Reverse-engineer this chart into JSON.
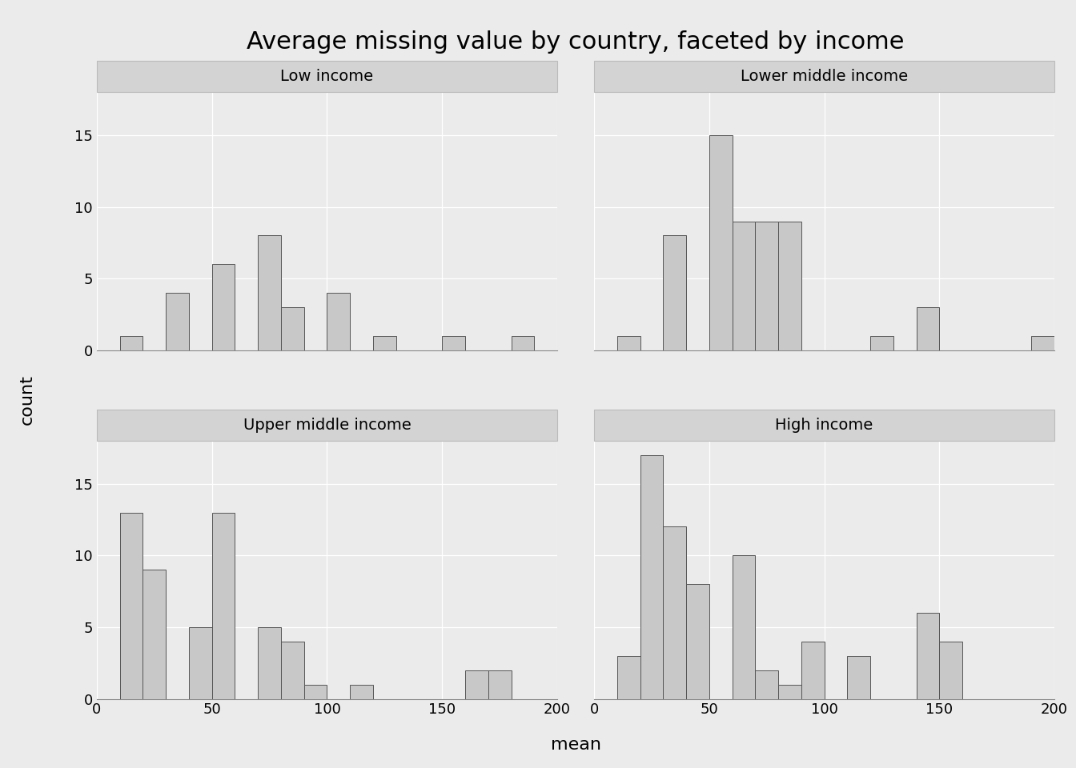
{
  "title": "Average missing value by country, faceted by income",
  "panels": [
    {
      "label": "Low income",
      "bin_edges": [
        10,
        20,
        30,
        40,
        50,
        60,
        70,
        80,
        90,
        100,
        110,
        120,
        130,
        140,
        150,
        160,
        170,
        180,
        190,
        200
      ],
      "counts": [
        1,
        0,
        4,
        0,
        6,
        0,
        8,
        3,
        0,
        4,
        0,
        1,
        0,
        0,
        1,
        0,
        0,
        1,
        0
      ]
    },
    {
      "label": "Lower middle income",
      "bin_edges": [
        10,
        20,
        30,
        40,
        50,
        60,
        70,
        80,
        90,
        100,
        110,
        120,
        130,
        140,
        150,
        160,
        170,
        180,
        190,
        200
      ],
      "counts": [
        1,
        0,
        8,
        0,
        15,
        9,
        9,
        9,
        0,
        0,
        0,
        1,
        0,
        3,
        0,
        0,
        0,
        0,
        1
      ]
    },
    {
      "label": "Upper middle income",
      "bin_edges": [
        10,
        20,
        30,
        40,
        50,
        60,
        70,
        80,
        90,
        100,
        110,
        120,
        130,
        140,
        150,
        160,
        170,
        180,
        190,
        200
      ],
      "counts": [
        13,
        9,
        0,
        5,
        13,
        0,
        5,
        4,
        1,
        0,
        1,
        0,
        0,
        0,
        0,
        2,
        2,
        0,
        0
      ]
    },
    {
      "label": "High income",
      "bin_edges": [
        10,
        20,
        30,
        40,
        50,
        60,
        70,
        80,
        90,
        100,
        110,
        120,
        130,
        140,
        150,
        160,
        170,
        180,
        190,
        200
      ],
      "counts": [
        3,
        17,
        12,
        8,
        0,
        10,
        2,
        1,
        4,
        0,
        3,
        0,
        0,
        6,
        4,
        0,
        0,
        0,
        0
      ]
    }
  ],
  "xlim": [
    0,
    200
  ],
  "xticks": [
    0,
    50,
    100,
    150,
    200
  ],
  "ylim": [
    0,
    18
  ],
  "yticks": [
    0,
    5,
    10,
    15
  ],
  "xlabel": "mean",
  "ylabel": "count",
  "bar_color": "#c8c8c8",
  "bar_edgecolor": "#555555",
  "outer_bg_color": "#ebebeb",
  "panel_bg_color": "#ebebeb",
  "strip_bg_color": "#d3d3d3",
  "grid_color": "#ffffff",
  "title_fontsize": 22,
  "axis_label_fontsize": 16,
  "tick_fontsize": 13,
  "strip_fontsize": 14
}
